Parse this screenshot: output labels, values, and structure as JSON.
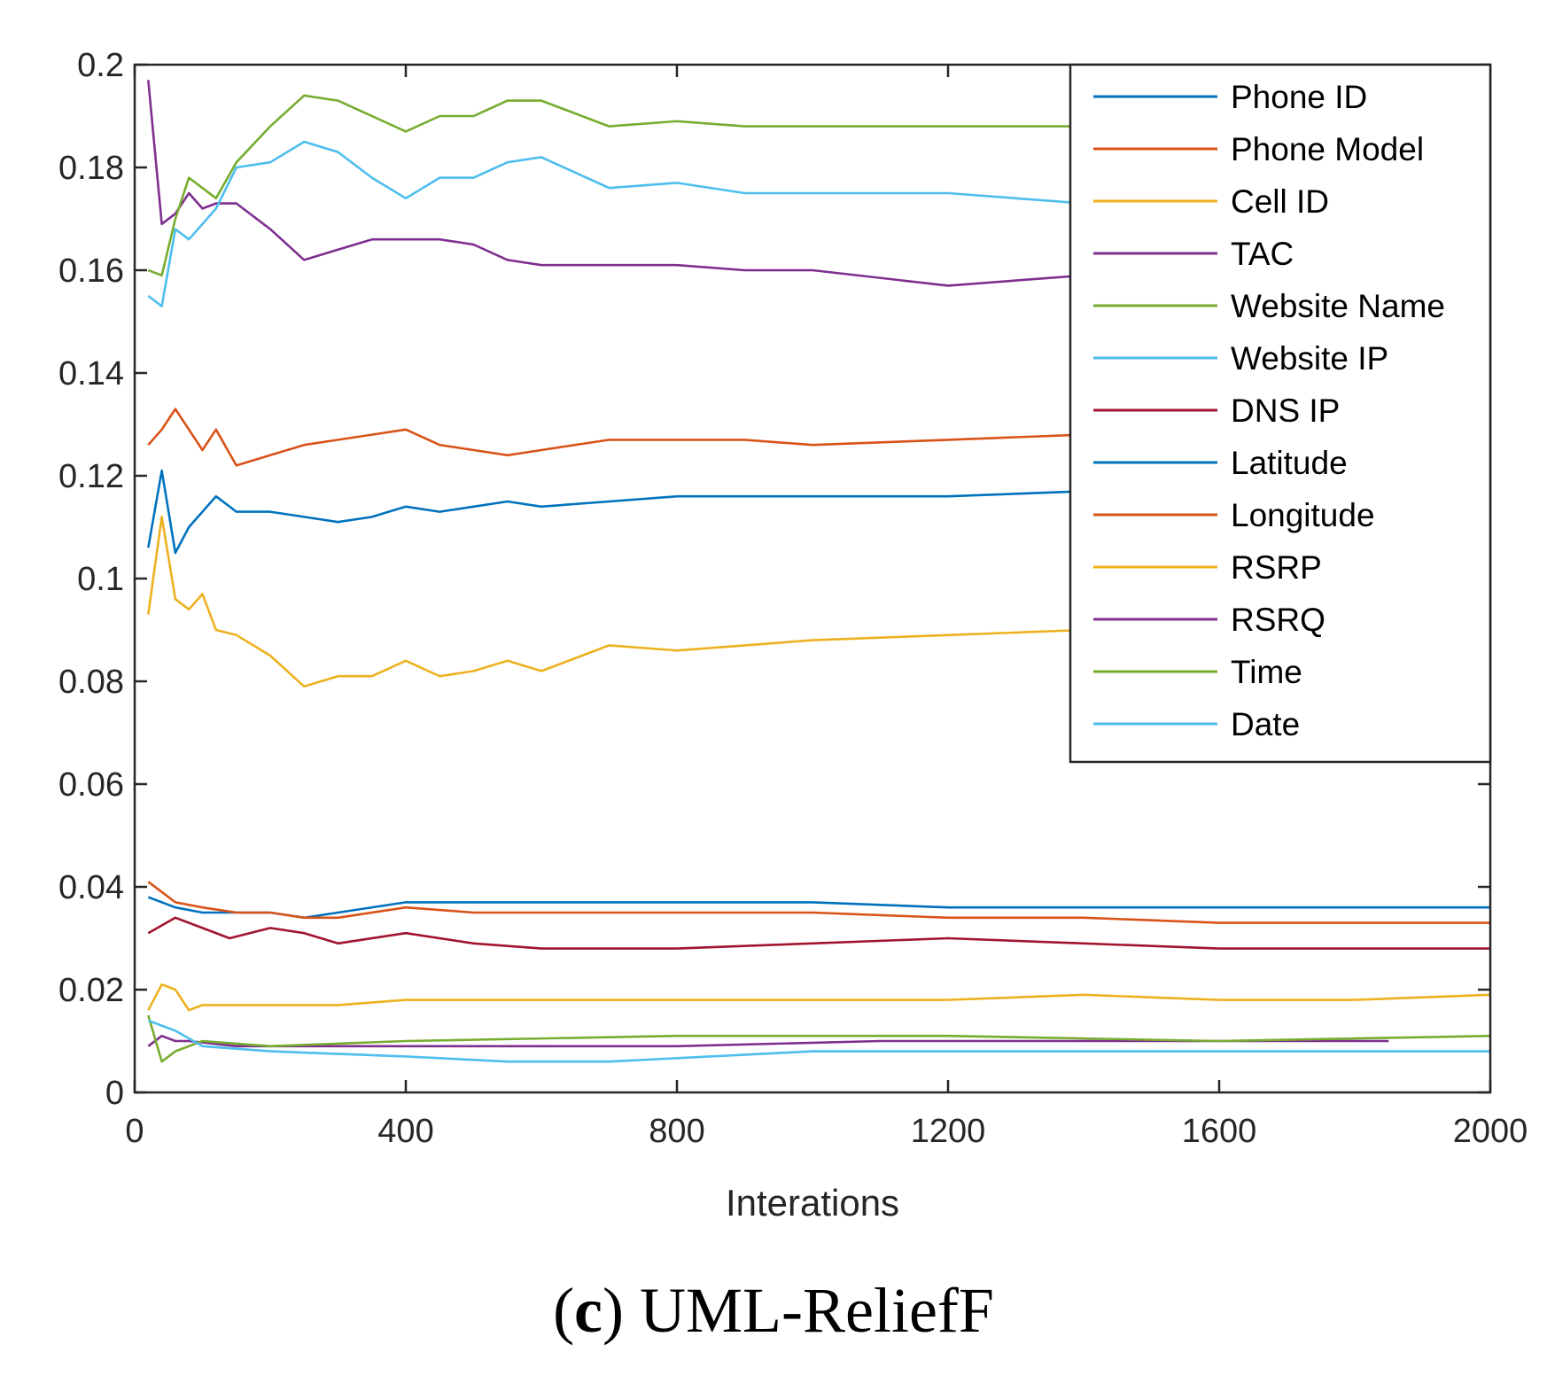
{
  "chart_data": {
    "type": "line",
    "title": "",
    "xlabel": "Interations",
    "ylabel": "",
    "xlim": [
      0,
      2000
    ],
    "ylim": [
      0,
      0.2
    ],
    "xticks": [
      0,
      400,
      800,
      1200,
      1600,
      2000
    ],
    "yticks": [
      0,
      0.02,
      0.04,
      0.06,
      0.08,
      0.1,
      0.12,
      0.14,
      0.16,
      0.18,
      0.2
    ],
    "xtick_labels": [
      "0",
      "400",
      "800",
      "1200",
      "1600",
      "2000"
    ],
    "ytick_labels": [
      "0",
      "0.02",
      "0.04",
      "0.06",
      "0.08",
      "0.1",
      "0.12",
      "0.14",
      "0.16",
      "0.18",
      "0.2"
    ],
    "legend_position": "top-right",
    "grid": false,
    "series": [
      {
        "name": "Phone ID",
        "color": "#0072BD",
        "x": [
          20,
          40,
          60,
          80,
          120,
          150,
          200,
          250,
          300,
          350,
          400,
          450,
          500,
          550,
          600,
          700,
          800,
          900,
          1000,
          1200,
          1400
        ],
        "y": [
          0.106,
          0.121,
          0.105,
          0.11,
          0.116,
          0.113,
          0.113,
          0.112,
          0.111,
          0.112,
          0.114,
          0.113,
          0.114,
          0.115,
          0.114,
          0.115,
          0.116,
          0.116,
          0.116,
          0.116,
          0.117
        ]
      },
      {
        "name": "Phone Model",
        "color": "#D95319",
        "x": [
          20,
          40,
          60,
          80,
          100,
          120,
          150,
          200,
          250,
          300,
          350,
          400,
          450,
          500,
          550,
          600,
          700,
          800,
          900,
          1000,
          1200,
          1400
        ],
        "y": [
          0.126,
          0.129,
          0.133,
          0.129,
          0.125,
          0.129,
          0.122,
          0.124,
          0.126,
          0.127,
          0.128,
          0.129,
          0.126,
          0.125,
          0.124,
          0.125,
          0.127,
          0.127,
          0.127,
          0.126,
          0.127,
          0.128
        ]
      },
      {
        "name": "Cell ID",
        "color": "#EDB120",
        "x": [
          20,
          40,
          60,
          80,
          100,
          120,
          150,
          200,
          250,
          300,
          350,
          400,
          450,
          500,
          550,
          600,
          700,
          800,
          900,
          1000,
          1200,
          1400
        ],
        "y": [
          0.093,
          0.112,
          0.096,
          0.094,
          0.097,
          0.09,
          0.089,
          0.085,
          0.079,
          0.081,
          0.081,
          0.084,
          0.081,
          0.082,
          0.084,
          0.082,
          0.087,
          0.086,
          0.087,
          0.088,
          0.089,
          0.09
        ]
      },
      {
        "name": "TAC",
        "color": "#7E2F8E",
        "x": [
          20,
          40,
          60,
          80,
          100,
          120,
          150,
          200,
          250,
          300,
          350,
          400,
          450,
          500,
          550,
          600,
          700,
          800,
          900,
          1000,
          1200,
          1400
        ],
        "y": [
          0.197,
          0.169,
          0.171,
          0.175,
          0.172,
          0.173,
          0.173,
          0.168,
          0.162,
          0.164,
          0.166,
          0.166,
          0.166,
          0.165,
          0.162,
          0.161,
          0.161,
          0.161,
          0.16,
          0.16,
          0.157,
          0.159
        ]
      },
      {
        "name": "Website Name",
        "color": "#77AC30",
        "x": [
          20,
          40,
          60,
          80,
          100,
          120,
          150,
          200,
          250,
          300,
          350,
          400,
          450,
          500,
          550,
          600,
          700,
          800,
          900,
          1000,
          1200,
          1400
        ],
        "y": [
          0.16,
          0.159,
          0.17,
          0.178,
          0.176,
          0.174,
          0.181,
          0.188,
          0.194,
          0.193,
          0.19,
          0.187,
          0.19,
          0.19,
          0.193,
          0.193,
          0.188,
          0.189,
          0.188,
          0.188,
          0.188,
          0.188
        ]
      },
      {
        "name": "Website IP",
        "color": "#4DBEEE",
        "x": [
          20,
          40,
          60,
          80,
          100,
          120,
          150,
          200,
          250,
          300,
          350,
          400,
          450,
          500,
          550,
          600,
          700,
          800,
          900,
          1000,
          1200,
          1400
        ],
        "y": [
          0.155,
          0.153,
          0.168,
          0.166,
          0.169,
          0.172,
          0.18,
          0.181,
          0.185,
          0.183,
          0.178,
          0.174,
          0.178,
          0.178,
          0.181,
          0.182,
          0.176,
          0.177,
          0.175,
          0.175,
          0.175,
          0.173
        ]
      },
      {
        "name": "DNS IP",
        "color": "#A2142F",
        "x": [
          20,
          60,
          100,
          140,
          200,
          250,
          300,
          400,
          500,
          600,
          800,
          1000,
          1200,
          1400,
          1600,
          1800,
          2000
        ],
        "y": [
          0.031,
          0.034,
          0.032,
          0.03,
          0.032,
          0.031,
          0.029,
          0.031,
          0.029,
          0.028,
          0.028,
          0.029,
          0.03,
          0.029,
          0.028,
          0.028,
          0.028
        ]
      },
      {
        "name": "Latitude",
        "color": "#0072BD",
        "x": [
          20,
          60,
          100,
          150,
          200,
          250,
          300,
          400,
          500,
          600,
          800,
          1000,
          1200,
          1400,
          1600,
          1800,
          2000
        ],
        "y": [
          0.038,
          0.036,
          0.035,
          0.035,
          0.035,
          0.034,
          0.035,
          0.037,
          0.037,
          0.037,
          0.037,
          0.037,
          0.036,
          0.036,
          0.036,
          0.036,
          0.036
        ]
      },
      {
        "name": "Longitude",
        "color": "#D95319",
        "x": [
          20,
          60,
          100,
          150,
          200,
          250,
          300,
          400,
          500,
          600,
          800,
          1000,
          1200,
          1400,
          1600,
          1800,
          2000
        ],
        "y": [
          0.041,
          0.037,
          0.036,
          0.035,
          0.035,
          0.034,
          0.034,
          0.036,
          0.035,
          0.035,
          0.035,
          0.035,
          0.034,
          0.034,
          0.033,
          0.033,
          0.033
        ]
      },
      {
        "name": "RSRP",
        "color": "#EDB120",
        "x": [
          20,
          40,
          60,
          80,
          100,
          200,
          300,
          400,
          600,
          800,
          1000,
          1200,
          1400,
          1600,
          1800,
          2000
        ],
        "y": [
          0.016,
          0.021,
          0.02,
          0.016,
          0.017,
          0.017,
          0.017,
          0.018,
          0.018,
          0.018,
          0.018,
          0.018,
          0.019,
          0.018,
          0.018,
          0.019
        ]
      },
      {
        "name": "RSRQ",
        "color": "#7E2F8E",
        "x": [
          20,
          40,
          60,
          80,
          150,
          400,
          800,
          1100,
          1500,
          1850
        ],
        "y": [
          0.009,
          0.011,
          0.01,
          0.01,
          0.009,
          0.009,
          0.009,
          0.01,
          0.01,
          0.01
        ]
      },
      {
        "name": "Time",
        "color": "#77AC30",
        "x": [
          20,
          40,
          60,
          100,
          200,
          400,
          800,
          1200,
          1600,
          2000
        ],
        "y": [
          0.015,
          0.006,
          0.008,
          0.01,
          0.009,
          0.01,
          0.011,
          0.011,
          0.01,
          0.011
        ]
      },
      {
        "name": "Date",
        "color": "#4DBEEE",
        "x": [
          20,
          40,
          60,
          100,
          200,
          400,
          550,
          700,
          1000,
          1400,
          1800,
          2000
        ],
        "y": [
          0.014,
          0.013,
          0.012,
          0.009,
          0.008,
          0.007,
          0.006,
          0.006,
          0.008,
          0.008,
          0.008,
          0.008
        ]
      }
    ]
  },
  "caption": {
    "letter": "c",
    "text": " UML-ReliefF"
  }
}
